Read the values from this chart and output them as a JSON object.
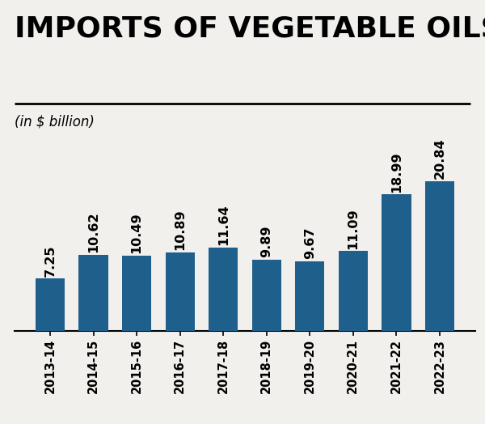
{
  "title": "IMPORTS OF VEGETABLE OILS",
  "subtitle": "(in $ billion)",
  "categories": [
    "2013-14",
    "2014-15",
    "2015-16",
    "2016-17",
    "2017-18",
    "2018-19",
    "2019-20",
    "2020-21",
    "2021-22",
    "2022-23"
  ],
  "values": [
    7.25,
    10.62,
    10.49,
    10.89,
    11.64,
    9.89,
    9.67,
    11.09,
    18.99,
    20.84
  ],
  "bar_color": "#1f5f8b",
  "background_color": "#f2f0ed",
  "title_fontsize": 26,
  "subtitle_fontsize": 12,
  "label_fontsize": 11.5,
  "tick_fontsize": 10.5,
  "ylim": [
    0,
    26
  ]
}
